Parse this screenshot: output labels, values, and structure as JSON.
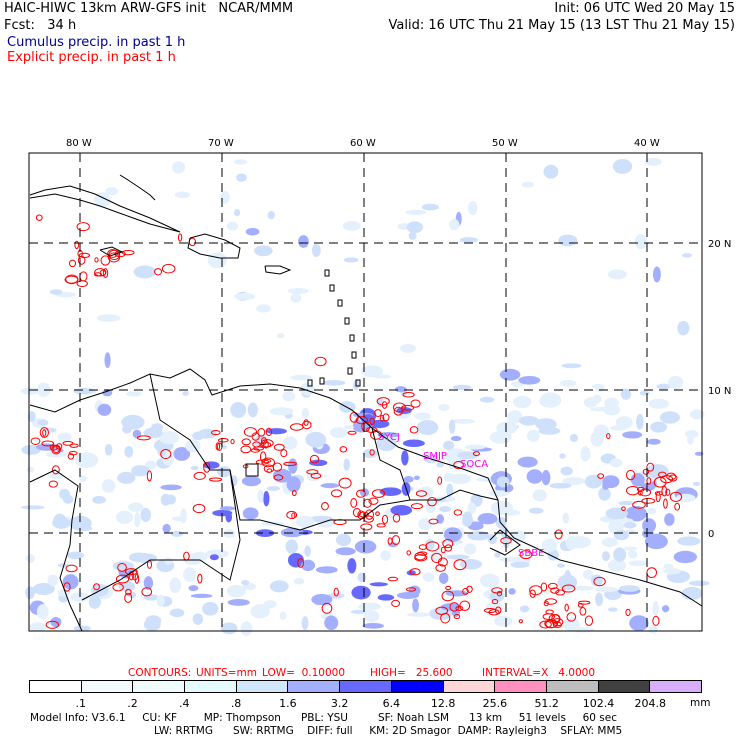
{
  "header": {
    "title": "HAIC-HIWC 13km ARW-GFS init   NCAR/MMM",
    "init": "Init: 06 UTC Wed 20 May 15",
    "fcst": "Fcst:   34 h",
    "valid": "Valid: 16 UTC Thu 21 May 15 (13 LST Thu 21 May 15)",
    "cumulus_label": "Cumulus precip. in past 1 h",
    "explicit_label": "Explicit precip. in past 1 h"
  },
  "map": {
    "lon_labels": [
      "80 W",
      "70 W",
      "60 W",
      "50 W",
      "40 W"
    ],
    "lat_labels": [
      "20 N",
      "10 N",
      "0"
    ],
    "station_labels": [
      "SYCJ",
      "SMJP",
      "SOCA",
      "SBBE"
    ],
    "colors": {
      "coast": "#000000",
      "grid": "#000000",
      "contour": "#ff0000",
      "station": "#ff00ff"
    }
  },
  "contour_info": {
    "contours": "CONTOURS:",
    "units": "UNITS=mm",
    "low": "LOW=  0.10000",
    "high": "HIGH=   25.600",
    "interval": "INTERVAL=X   4.0000"
  },
  "colorbar": {
    "colors": [
      "#ffffff",
      "#f3fbfc",
      "#f0fcfc",
      "#e4fbfb",
      "#cfe6fb",
      "#a3aefc",
      "#6669fb",
      "#0000ff",
      "#fed6d6",
      "#fe90bf",
      "#bdbdbd",
      "#404040",
      "#d8aefb"
    ],
    "labels": [
      ".1",
      ".2",
      ".4",
      ".8",
      "1.6",
      "3.2",
      "6.4",
      "12.8",
      "25.6",
      "51.2",
      "102.4",
      "204.8"
    ],
    "unit": "mm"
  },
  "footer": {
    "line1": "Model Info: V3.6.1     CU: KF        MP: Thompson      PBL: YSU         SF: Noah LSM      13 km     51 levels     60 sec",
    "line2": "LW: RRTMG      SW: RRTMG    DIFF: full     KM: 2D Smagor  DAMP: Rayleigh3    SFLAY: MM5"
  }
}
